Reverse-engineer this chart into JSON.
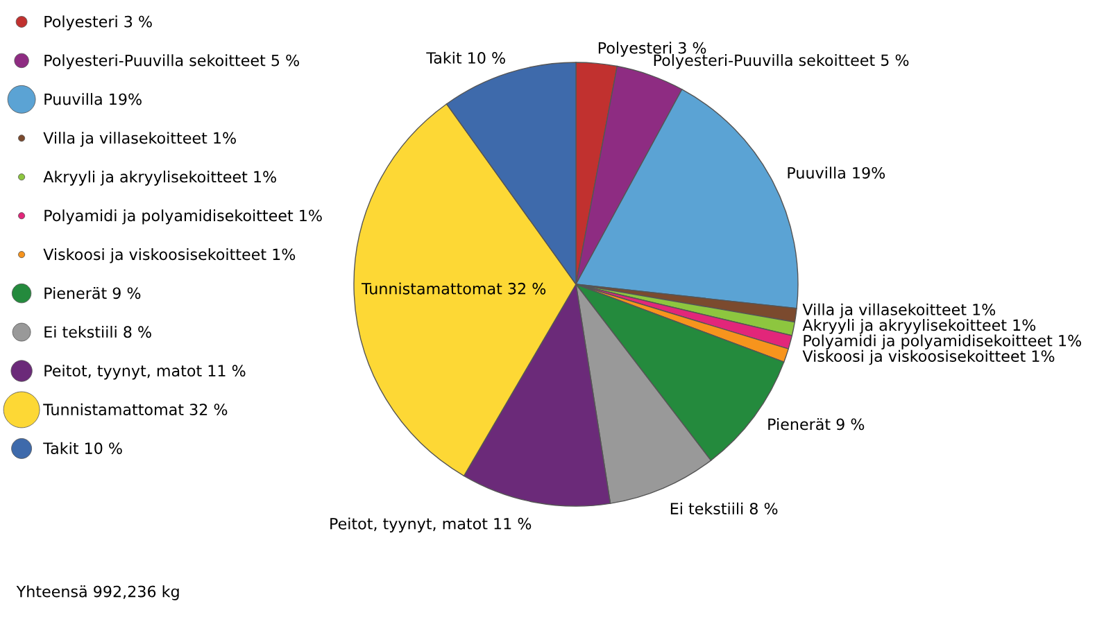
{
  "chart_data": {
    "type": "pie",
    "categories": [
      "Polyesteri",
      "Polyesteri-Puuvilla sekoitteet",
      "Puuvilla",
      "Villa ja villasekoitteet",
      "Akryyli ja akryylisekoitteet",
      "Polyamidi ja polyamidisekoitteet",
      "Viskoosi ja viskoosisekoitteet",
      "Pienerät",
      "Ei tekstiili",
      "Peitot, tyynyt, matot",
      "Tunnistamattomat",
      "Takit"
    ],
    "values": [
      3,
      5,
      19,
      1,
      1,
      1,
      1,
      9,
      8,
      11,
      32,
      10
    ],
    "value_labels": [
      "3 %",
      "5 %",
      "19%",
      "1%",
      "1%",
      "1%",
      "1%",
      "9 %",
      "8 %",
      "11 %",
      "32 %",
      "10 %"
    ],
    "colors": [
      "#c1312f",
      "#8e2c82",
      "#5ba3d4",
      "#7b4a2e",
      "#8dc63f",
      "#e2267a",
      "#f7941d",
      "#248a3d",
      "#999999",
      "#6b2a79",
      "#fdd835",
      "#3e6aab"
    ],
    "legend": "left",
    "annotations": [
      "Yhteensä 992,236 kg"
    ]
  }
}
